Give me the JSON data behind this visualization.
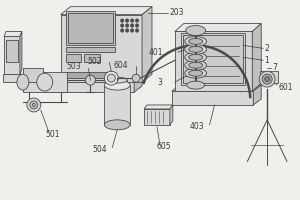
{
  "bg_color": "#f0efeb",
  "line_color": "#4a4a4a",
  "label_color": "#3a3a3a",
  "fig_width": 3.0,
  "fig_height": 2.0,
  "dpi": 100
}
